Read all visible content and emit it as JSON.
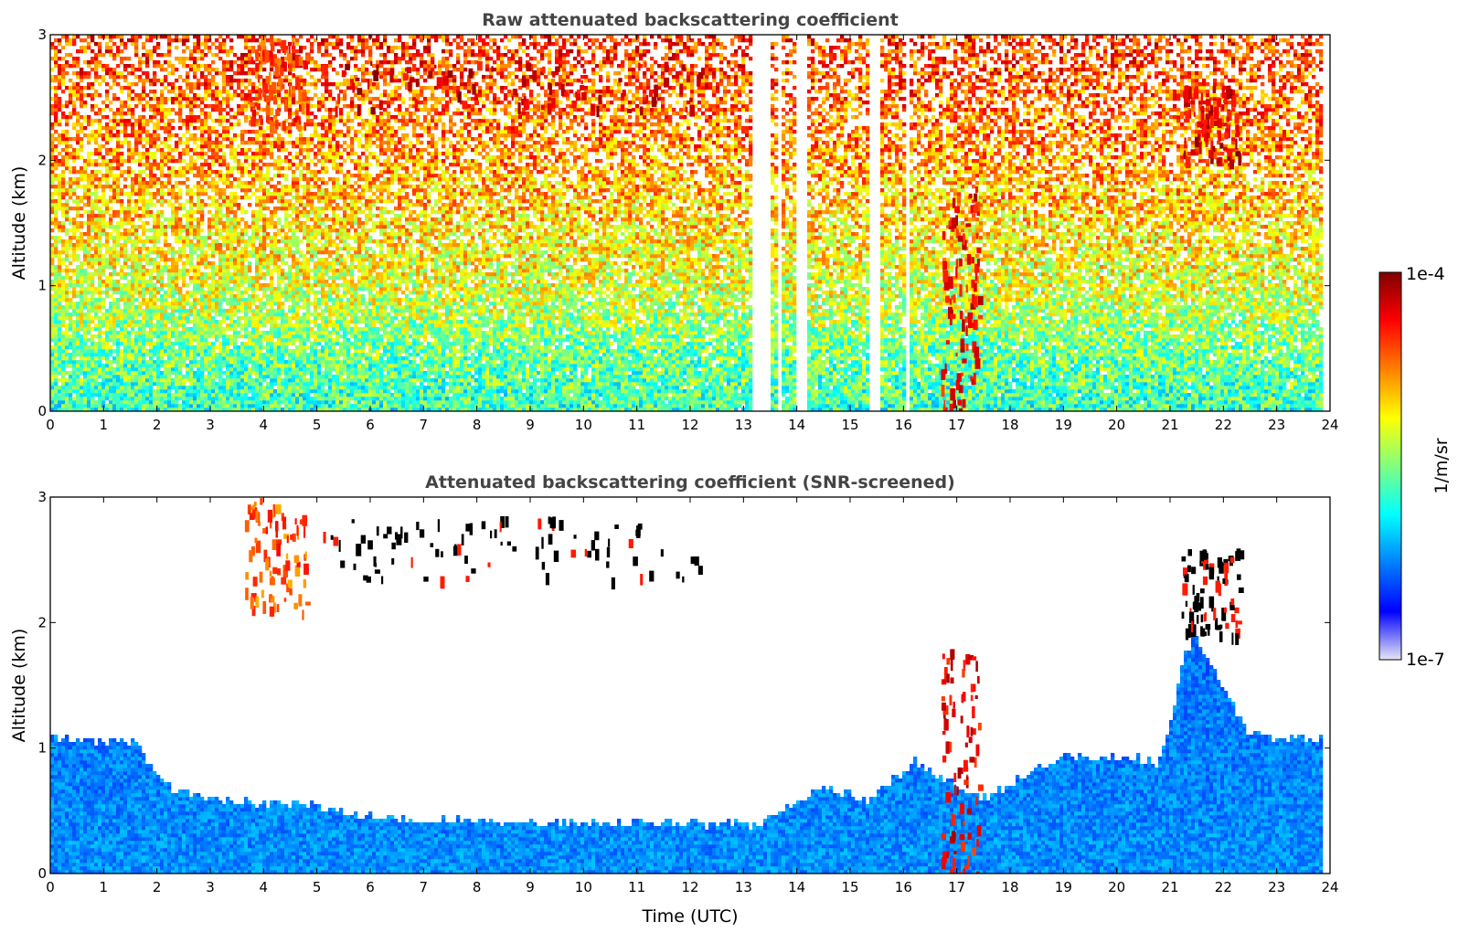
{
  "chart_data": [
    {
      "type": "heatmap",
      "title": "Raw attenuated backscattering coefficient",
      "xlabel": "",
      "ylabel": "Altitude (km)",
      "xlim": [
        0,
        24
      ],
      "ylim": [
        0,
        3
      ],
      "x_ticks": [
        "0",
        "1",
        "2",
        "3",
        "4",
        "5",
        "6",
        "7",
        "8",
        "9",
        "10",
        "11",
        "12",
        "13",
        "14",
        "15",
        "16",
        "17",
        "18",
        "19",
        "20",
        "21",
        "22",
        "23",
        "24"
      ],
      "y_ticks": [
        "0",
        "1",
        "2",
        "3"
      ],
      "colorscale": "jet",
      "log_color_scale": true,
      "background_gradient": {
        "altitude_km": [
          0,
          0.5,
          1.0,
          2.0,
          3.0
        ],
        "value_1_m_sr": [
          "2e-6",
          "3e-6",
          "6e-6",
          "1.5e-5",
          "3e-5"
        ]
      },
      "data_gaps_utc": [
        [
          13.2,
          13.5
        ],
        [
          13.65,
          13.7
        ],
        [
          14.0,
          14.2
        ],
        [
          15.35,
          15.6
        ],
        [
          16.05,
          16.1
        ],
        [
          16.5,
          16.55
        ]
      ],
      "features": [
        {
          "name": "elevated cloud layer",
          "time_utc": [
            5.0,
            12.2
          ],
          "altitude_km": [
            2.4,
            2.8
          ],
          "value_1_m_sr": "1e-4"
        },
        {
          "name": "cloud fall streaks",
          "time_utc": [
            3.7,
            4.8
          ],
          "altitude_km": [
            2.3,
            3.0
          ],
          "value_1_m_sr": "5e-5"
        },
        {
          "name": "low cloud / precipitation column",
          "time_utc": [
            16.7,
            17.4
          ],
          "altitude_km": [
            0.0,
            1.8
          ],
          "value_1_m_sr": "8e-5"
        },
        {
          "name": "cloud patch",
          "time_utc": [
            21.2,
            22.3
          ],
          "altitude_km": [
            2.0,
            2.6
          ],
          "value_1_m_sr": "1e-4"
        }
      ]
    },
    {
      "type": "heatmap",
      "title": "Attenuated backscattering coefficient (SNR-screened)",
      "xlabel": "Time (UTC)",
      "ylabel": "Altitude (km)",
      "xlim": [
        0,
        24
      ],
      "ylim": [
        0,
        3
      ],
      "x_ticks": [
        "0",
        "1",
        "2",
        "3",
        "4",
        "5",
        "6",
        "7",
        "8",
        "9",
        "10",
        "11",
        "12",
        "13",
        "14",
        "15",
        "16",
        "17",
        "18",
        "19",
        "20",
        "21",
        "22",
        "23",
        "24"
      ],
      "y_ticks": [
        "0",
        "1",
        "2",
        "3"
      ],
      "colorscale": "jet",
      "log_color_scale": true,
      "boundary_layer_top_km": {
        "time_utc": [
          0,
          1.6,
          2.2,
          3,
          5,
          6,
          7,
          8,
          9,
          10,
          11,
          12,
          13.2,
          14.5,
          15.35,
          16.2,
          17.5,
          18.3,
          19,
          20,
          20.8,
          21.0,
          21.3,
          21.5,
          22.5,
          23.8
        ],
        "top_km": [
          1.1,
          1.05,
          0.7,
          0.6,
          0.55,
          0.48,
          0.45,
          0.43,
          0.42,
          0.42,
          0.42,
          0.42,
          0.4,
          0.7,
          0.6,
          0.9,
          0.6,
          0.8,
          0.95,
          0.95,
          0.9,
          1.2,
          1.8,
          1.9,
          1.1,
          1.1
        ]
      },
      "features": [
        {
          "name": "elevated cloud layer",
          "time_utc": [
            5.0,
            12.2
          ],
          "altitude_km": [
            2.35,
            2.85
          ],
          "value_1_m_sr": ">1e-4"
        },
        {
          "name": "cloud fall streaks",
          "time_utc": [
            3.6,
            4.8
          ],
          "altitude_km": [
            2.1,
            3.0
          ],
          "value_1_m_sr": "4e-5"
        },
        {
          "name": "low cloud / precipitation column",
          "time_utc": [
            16.7,
            17.4
          ],
          "altitude_km": [
            0.0,
            1.8
          ],
          "value_1_m_sr": "8e-5"
        },
        {
          "name": "cloud patch",
          "time_utc": [
            21.2,
            22.3
          ],
          "altitude_km": [
            1.9,
            2.6
          ],
          "value_1_m_sr": ">1e-4"
        }
      ]
    }
  ],
  "colorbar": {
    "max_label": "1e-4",
    "min_label": "1e-7",
    "label": "1/m/sr",
    "stops": [
      "#e6e6f5",
      "#0000ff",
      "#0080ff",
      "#00ffff",
      "#80ff80",
      "#ffff00",
      "#ff8000",
      "#ff0000",
      "#800000"
    ]
  }
}
